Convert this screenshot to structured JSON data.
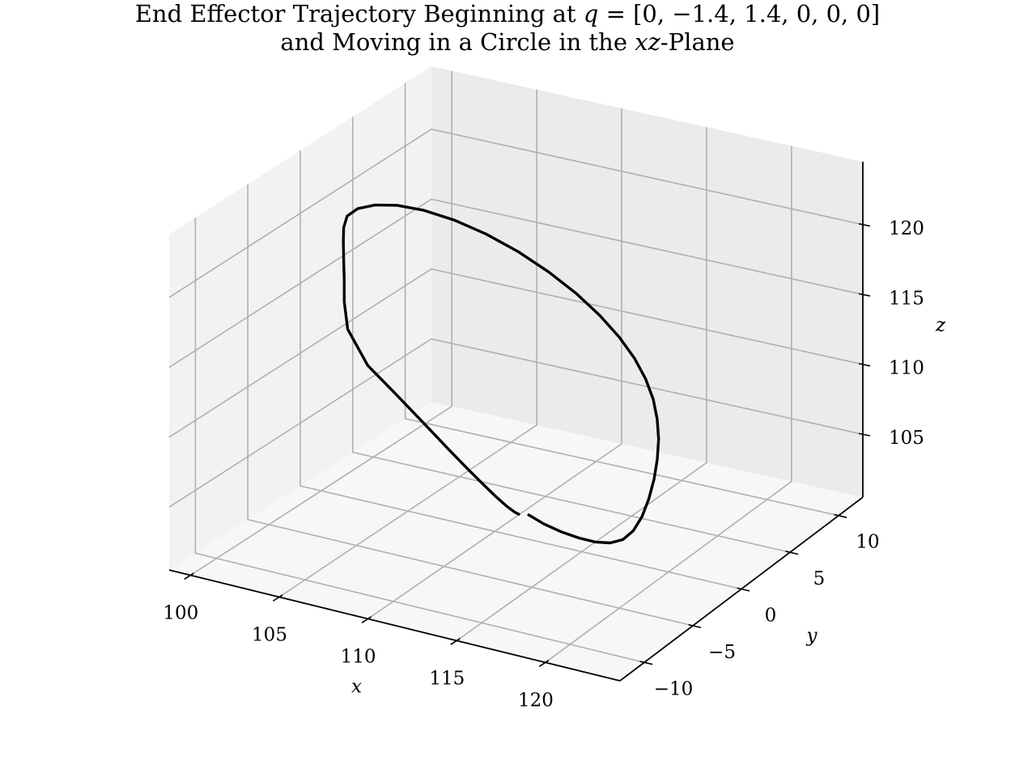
{
  "chart_data": {
    "type": "line3d",
    "title_lines": [
      [
        "End Effector Trajectory Beginning at ",
        {
          "math": "q"
        },
        " = [0, −1.4, 1.4, 0, 0, 0]"
      ],
      [
        "and Moving in a Circle in the ",
        {
          "math": "xz"
        },
        "-Plane"
      ]
    ],
    "xlabel": "x",
    "ylabel": "y",
    "zlabel": "z",
    "x_ticks": [
      100,
      105,
      110,
      115,
      120
    ],
    "y_ticks": [
      -10,
      -5,
      0,
      5,
      10
    ],
    "z_ticks": [
      105,
      110,
      115,
      120
    ],
    "x_tick_labels": [
      "100",
      "105",
      "110",
      "115",
      "120"
    ],
    "y_tick_labels": [
      "−10",
      "−5",
      "0",
      "5",
      "10"
    ],
    "z_tick_labels": [
      "105",
      "110",
      "115",
      "120"
    ],
    "xlim": [
      98.8,
      124.2
    ],
    "ylim": [
      -12.5,
      12.5
    ],
    "zlim": [
      100.5,
      124.5
    ],
    "grid": true,
    "line_color": "#000000",
    "pane_colors": [
      "#f2f2f2",
      "#ebebeb",
      "#f7f7f7"
    ],
    "grid_color": "#b0b0b0",
    "series": [
      {
        "x": [
          111.44,
          111.14,
          110.7,
          110.1,
          109.35,
          108.43,
          107.29,
          105.92,
          104.35,
          102.68,
          101.53,
          101.33,
          101.33,
          101.3,
          101.28,
          101.3,
          101.5,
          102.1,
          103.1,
          104.37,
          105.93,
          107.65,
          109.5,
          111.34,
          113.1,
          114.7,
          116.05,
          117.16,
          118.04,
          118.68,
          119.12,
          119.35,
          119.43,
          119.36,
          119.17,
          118.87,
          118.47,
          117.97,
          117.37,
          116.64,
          115.79,
          114.84,
          113.83,
          112.82,
          111.89
        ],
        "y": [
          0,
          0,
          0,
          0,
          0,
          0,
          0,
          0,
          0,
          0,
          0,
          0,
          0,
          0,
          0,
          0,
          0,
          0,
          0,
          0,
          0,
          0,
          0,
          0,
          0,
          0,
          0,
          0,
          0,
          0,
          0,
          0,
          0,
          0,
          0,
          0,
          0,
          0,
          0,
          0,
          0,
          0,
          0,
          0,
          0
        ],
        "z": [
          102.11,
          102.21,
          102.49,
          102.97,
          103.65,
          104.52,
          105.64,
          107.04,
          108.61,
          110.25,
          112.5,
          114.4,
          115.9,
          117.4,
          118.7,
          119.7,
          120.58,
          121.29,
          121.84,
          122.19,
          122.28,
          122.09,
          121.62,
          120.9,
          119.96,
          118.87,
          117.7,
          116.48,
          115.22,
          113.93,
          112.61,
          111.25,
          109.85,
          108.4,
          106.9,
          105.4,
          104.0,
          102.85,
          102.05,
          101.6,
          101.42,
          101.43,
          101.58,
          101.86,
          102.27
        ]
      }
    ]
  }
}
